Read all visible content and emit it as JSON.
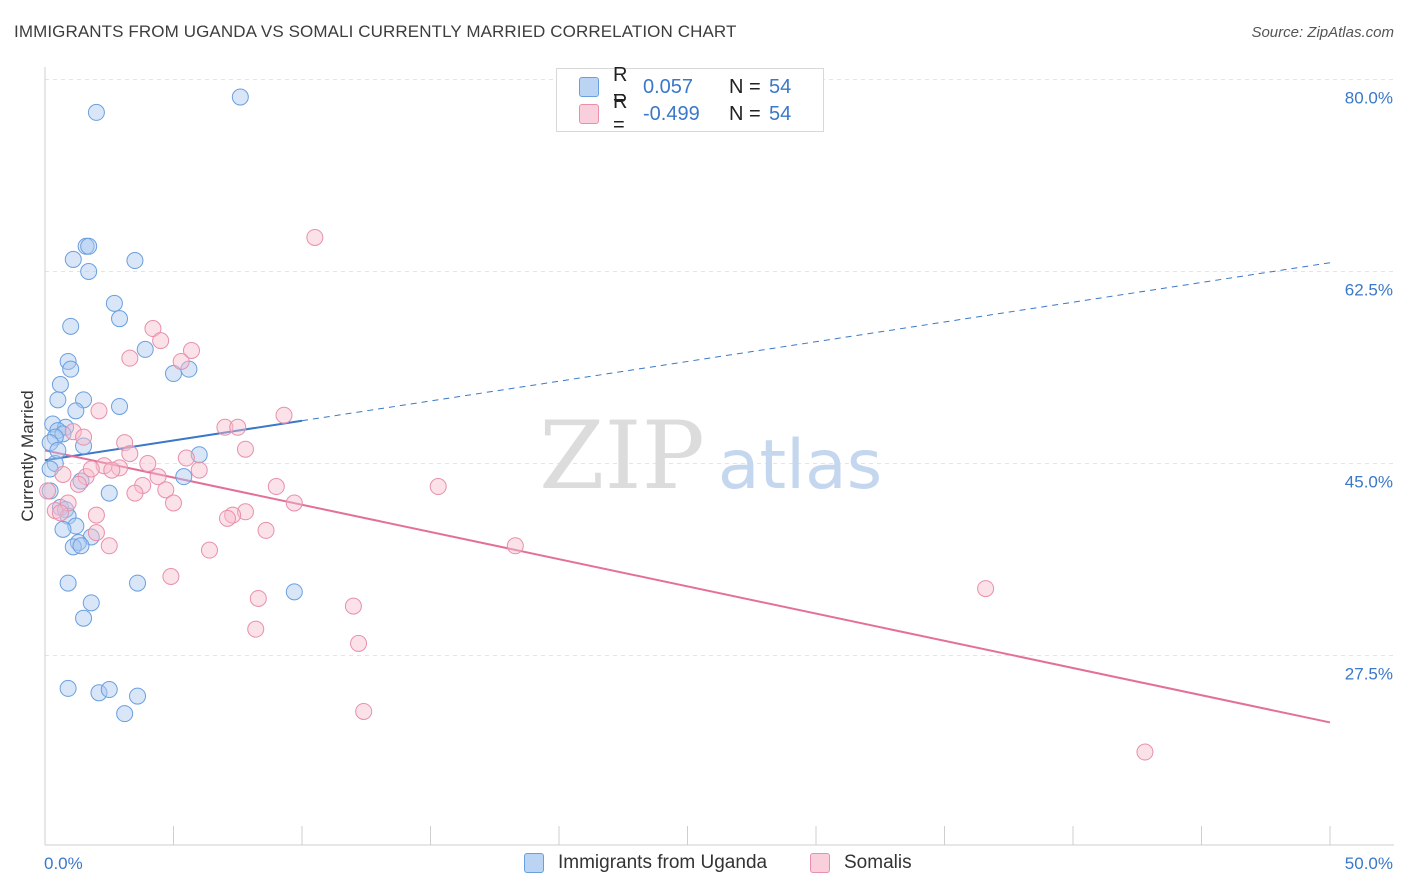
{
  "title": "IMMIGRANTS FROM UGANDA VS SOMALI CURRENTLY MARRIED CORRELATION CHART",
  "source": "Source: ZipAtlas.com",
  "watermark": {
    "zip": "ZIP",
    "atlas": "atlas"
  },
  "legend_top": [
    {
      "r_label": "R =",
      "r_value": "0.057",
      "n_label": "N =",
      "n_value": "54"
    },
    {
      "r_label": "R =",
      "r_value": "-0.499",
      "n_label": "N =",
      "n_value": "54"
    }
  ],
  "legend_bottom": [
    {
      "label": "Immigrants from Uganda"
    },
    {
      "label": "Somalis"
    }
  ],
  "colors": {
    "uganda_fill": "#a9c8f0",
    "uganda_stroke": "#6a9fdf",
    "uganda_line": "#3a78c9",
    "somali_fill": "#f6bccd",
    "somali_stroke": "#e890ab",
    "somali_line": "#e3709a",
    "tick_label": "#3a78c9",
    "grid": "#e4e4e4"
  },
  "chart_data": {
    "type": "scatter",
    "title": "IMMIGRANTS FROM UGANDA VS SOMALI CURRENTLY MARRIED CORRELATION CHART",
    "xlabel": "",
    "ylabel": "Currently Married",
    "xlim": [
      0,
      50
    ],
    "ylim": [
      12,
      82
    ],
    "x_tick_labels": [
      "0.0%",
      "50.0%"
    ],
    "y_ticks": [
      27.5,
      45.0,
      62.5,
      80.0
    ],
    "y_tick_labels": [
      "27.5%",
      "45.0%",
      "62.5%",
      "80.0%"
    ],
    "grid": "horizontal dashed",
    "series": [
      {
        "name": "Immigrants from Uganda",
        "points": [
          [
            7.6,
            78.4
          ],
          [
            2.0,
            77.0
          ],
          [
            1.6,
            64.8
          ],
          [
            1.7,
            64.8
          ],
          [
            1.1,
            63.6
          ],
          [
            3.5,
            63.5
          ],
          [
            1.7,
            62.5
          ],
          [
            2.7,
            59.6
          ],
          [
            2.9,
            58.2
          ],
          [
            1.0,
            57.5
          ],
          [
            3.9,
            55.4
          ],
          [
            0.9,
            54.3
          ],
          [
            1.0,
            53.6
          ],
          [
            5.0,
            53.2
          ],
          [
            5.6,
            53.6
          ],
          [
            0.6,
            52.2
          ],
          [
            1.5,
            50.8
          ],
          [
            0.5,
            50.8
          ],
          [
            2.9,
            50.2
          ],
          [
            1.2,
            49.8
          ],
          [
            0.3,
            48.6
          ],
          [
            0.8,
            48.3
          ],
          [
            0.5,
            48.0
          ],
          [
            0.7,
            47.7
          ],
          [
            0.4,
            47.4
          ],
          [
            0.2,
            46.9
          ],
          [
            1.5,
            46.6
          ],
          [
            6.0,
            45.8
          ],
          [
            0.4,
            45.0
          ],
          [
            0.2,
            44.5
          ],
          [
            5.4,
            43.8
          ],
          [
            1.4,
            43.4
          ],
          [
            2.5,
            42.3
          ],
          [
            0.6,
            41.0
          ],
          [
            0.8,
            40.8
          ],
          [
            0.9,
            40.2
          ],
          [
            1.2,
            39.3
          ],
          [
            0.7,
            39.0
          ],
          [
            1.8,
            38.3
          ],
          [
            1.3,
            37.8
          ],
          [
            1.1,
            37.4
          ],
          [
            1.4,
            37.5
          ],
          [
            0.9,
            34.1
          ],
          [
            3.6,
            34.1
          ],
          [
            9.7,
            33.3
          ],
          [
            1.8,
            32.3
          ],
          [
            1.5,
            30.9
          ],
          [
            0.9,
            24.5
          ],
          [
            2.1,
            24.1
          ],
          [
            2.5,
            24.4
          ],
          [
            3.6,
            23.8
          ],
          [
            3.1,
            22.2
          ],
          [
            0.2,
            42.5
          ],
          [
            0.5,
            46.2
          ]
        ]
      },
      {
        "name": "Somalis",
        "points": [
          [
            10.5,
            65.6
          ],
          [
            4.2,
            57.3
          ],
          [
            4.5,
            56.2
          ],
          [
            5.7,
            55.3
          ],
          [
            3.3,
            54.6
          ],
          [
            5.3,
            54.3
          ],
          [
            9.3,
            49.4
          ],
          [
            2.1,
            49.8
          ],
          [
            7.0,
            48.3
          ],
          [
            7.5,
            48.3
          ],
          [
            1.1,
            47.9
          ],
          [
            1.5,
            47.4
          ],
          [
            3.1,
            46.9
          ],
          [
            7.8,
            46.3
          ],
          [
            3.3,
            45.9
          ],
          [
            5.5,
            45.5
          ],
          [
            4.0,
            45.0
          ],
          [
            2.3,
            44.8
          ],
          [
            2.9,
            44.6
          ],
          [
            6.0,
            44.4
          ],
          [
            0.7,
            44.0
          ],
          [
            1.6,
            43.8
          ],
          [
            4.4,
            43.8
          ],
          [
            1.3,
            43.1
          ],
          [
            3.8,
            43.0
          ],
          [
            15.3,
            42.9
          ],
          [
            9.0,
            42.9
          ],
          [
            4.7,
            42.6
          ],
          [
            3.5,
            42.3
          ],
          [
            9.7,
            41.4
          ],
          [
            5.0,
            41.4
          ],
          [
            7.8,
            40.6
          ],
          [
            7.3,
            40.3
          ],
          [
            7.1,
            40.0
          ],
          [
            2.0,
            40.3
          ],
          [
            8.6,
            38.9
          ],
          [
            2.0,
            38.7
          ],
          [
            0.4,
            40.7
          ],
          [
            18.3,
            37.5
          ],
          [
            2.5,
            37.5
          ],
          [
            6.4,
            37.1
          ],
          [
            4.9,
            34.7
          ],
          [
            36.6,
            33.6
          ],
          [
            8.3,
            32.7
          ],
          [
            12.0,
            32.0
          ],
          [
            8.2,
            29.9
          ],
          [
            12.2,
            28.6
          ],
          [
            12.4,
            22.4
          ],
          [
            42.8,
            18.7
          ],
          [
            0.1,
            42.5
          ],
          [
            1.8,
            44.5
          ],
          [
            0.9,
            41.4
          ],
          [
            2.6,
            44.4
          ],
          [
            0.6,
            40.5
          ]
        ]
      }
    ],
    "trendlines": [
      {
        "series": "Immigrants from Uganda",
        "solid_x": [
          0,
          10
        ],
        "y_start": 45.3,
        "y_end": 48.9,
        "dashed_x": [
          10,
          50
        ],
        "dashed_y_end": 63.3
      },
      {
        "series": "Somalis",
        "solid_x": [
          0,
          50
        ],
        "y_start": 46.2,
        "y_end": 21.4
      }
    ]
  }
}
